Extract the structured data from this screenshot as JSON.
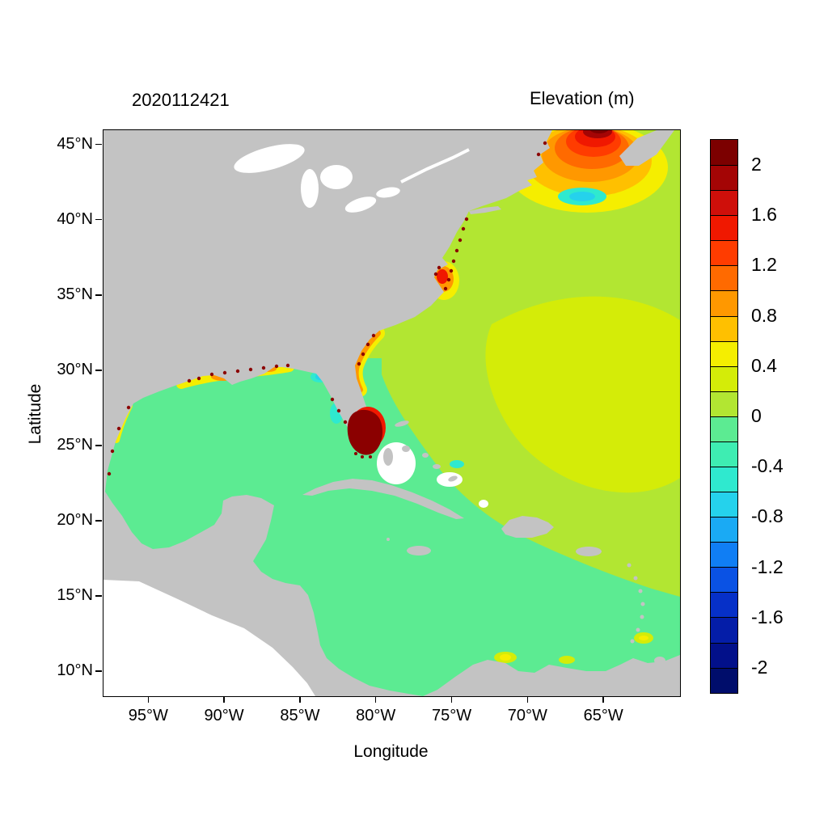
{
  "titles": {
    "timestamp": "2020112421",
    "colorbar_title": "Elevation (m)"
  },
  "axes": {
    "x": {
      "label": "Longitude",
      "tick_labels": [
        "95°W",
        "90°W",
        "85°W",
        "80°W",
        "75°W",
        "70°W",
        "65°W"
      ],
      "tick_values_w": [
        95,
        90,
        85,
        80,
        75,
        70,
        65
      ],
      "lon_range_deg_w": [
        98,
        60
      ]
    },
    "y": {
      "label": "Latitude",
      "tick_labels": [
        "45°N",
        "40°N",
        "35°N",
        "30°N",
        "25°N",
        "20°N",
        "15°N",
        "10°N"
      ],
      "tick_values_n": [
        45,
        40,
        35,
        30,
        25,
        20,
        15,
        10
      ],
      "lat_range_deg_n": [
        8.4,
        46
      ]
    }
  },
  "colorbar": {
    "labels": [
      "2",
      "1.6",
      "1.2",
      "0.8",
      "0.4",
      "0",
      "-0.4",
      "-0.8",
      "-1.2",
      "-1.6",
      "-2"
    ],
    "tick_values": [
      2,
      1.6,
      1.2,
      0.8,
      0.4,
      0,
      -0.4,
      -0.8,
      -1.2,
      -1.6,
      -2
    ],
    "value_range": [
      -2.2,
      2.2
    ],
    "cell_colors": [
      "#7c0000",
      "#a40505",
      "#cf0f0a",
      "#f01800",
      "#ff3c00",
      "#ff6a00",
      "#ff9800",
      "#ffc000",
      "#f5ee00",
      "#d4ec08",
      "#b2e632",
      "#5ceb92",
      "#3eedb2",
      "#2fe9cf",
      "#25d2ec",
      "#1aaaf4",
      "#107ef4",
      "#0a52e4",
      "#0630c8",
      "#041da8",
      "#02108a",
      "#000d6b"
    ]
  },
  "map_colors": {
    "land": "#c3c3c3",
    "no_data": "#ffffff",
    "atlantic_base": "#b2e632",
    "atlantic_high_patch": "#d4ec08",
    "gulf_caribbean": "#5ceb92",
    "coastal_extreme": "#8b0000"
  },
  "chart_data": {
    "type": "heatmap",
    "title": "Elevation (m)",
    "run_timestamp": "2020112421",
    "xlabel": "Longitude",
    "ylabel": "Latitude",
    "x_ticks": [
      "95°W",
      "90°W",
      "85°W",
      "80°W",
      "75°W",
      "70°W",
      "65°W"
    ],
    "y_ticks": [
      "45°N",
      "40°N",
      "35°N",
      "30°N",
      "25°N",
      "20°N",
      "15°N",
      "10°N"
    ],
    "lon_range_deg_w": [
      98,
      60
    ],
    "lat_range_deg_n": [
      8.4,
      46
    ],
    "legend_position": "right colorbar",
    "grid": false,
    "colorbar": {
      "title": "Elevation (m)",
      "tick_values": [
        2,
        1.6,
        1.2,
        0.8,
        0.4,
        0,
        -0.4,
        -0.8,
        -1.2,
        -1.6,
        -2
      ],
      "num_cells": 22,
      "range": [
        -2.2,
        2.2
      ],
      "units": "m"
    },
    "regions": [
      {
        "name": "Open Atlantic (base field)",
        "approx_elevation_m": 0.1
      },
      {
        "name": "Central Atlantic high patch (~25-35N, 60-72W)",
        "approx_elevation_m": 0.3
      },
      {
        "name": "Gulf of Mexico interior",
        "approx_elevation_m": -0.1
      },
      {
        "name": "Caribbean Sea",
        "approx_elevation_m": -0.1
      },
      {
        "name": "Gulf of Maine / Bay of Fundy hotspot (~44N, 66W)",
        "approx_elevation_m": 1.8,
        "note": "concentric maximum, dark red at top edge"
      },
      {
        "name": "Scotian shelf cyan patch (~42N, 66W)",
        "approx_elevation_m": -0.5
      },
      {
        "name": "Cape Hatteras coastal blob (~35.5N, 76W)",
        "approx_elevation_m": 1.2
      },
      {
        "name": "Georgia / NE Florida coastal band (~29-32N)",
        "approx_elevation_m": 0.7
      },
      {
        "name": "South Florida / Everglades flooded cells",
        "approx_elevation_m": 2.2,
        "note": "dark red"
      },
      {
        "name": "West Florida shelf cyan patches (Tampa Bay, Big Bend)",
        "approx_elevation_m": -0.5
      },
      {
        "name": "Northern Gulf coast LA-MS-AL band (~29-30.5N)",
        "approx_elevation_m": 0.6
      },
      {
        "name": "Venezuela coast yellow spots (~10N)",
        "approx_elevation_m": 0.4
      },
      {
        "name": "Land mask",
        "approx_elevation_m": null,
        "note": "gray"
      },
      {
        "name": "Outside model domain (Pacific side, lower left)",
        "approx_elevation_m": null,
        "note": "white"
      }
    ]
  }
}
